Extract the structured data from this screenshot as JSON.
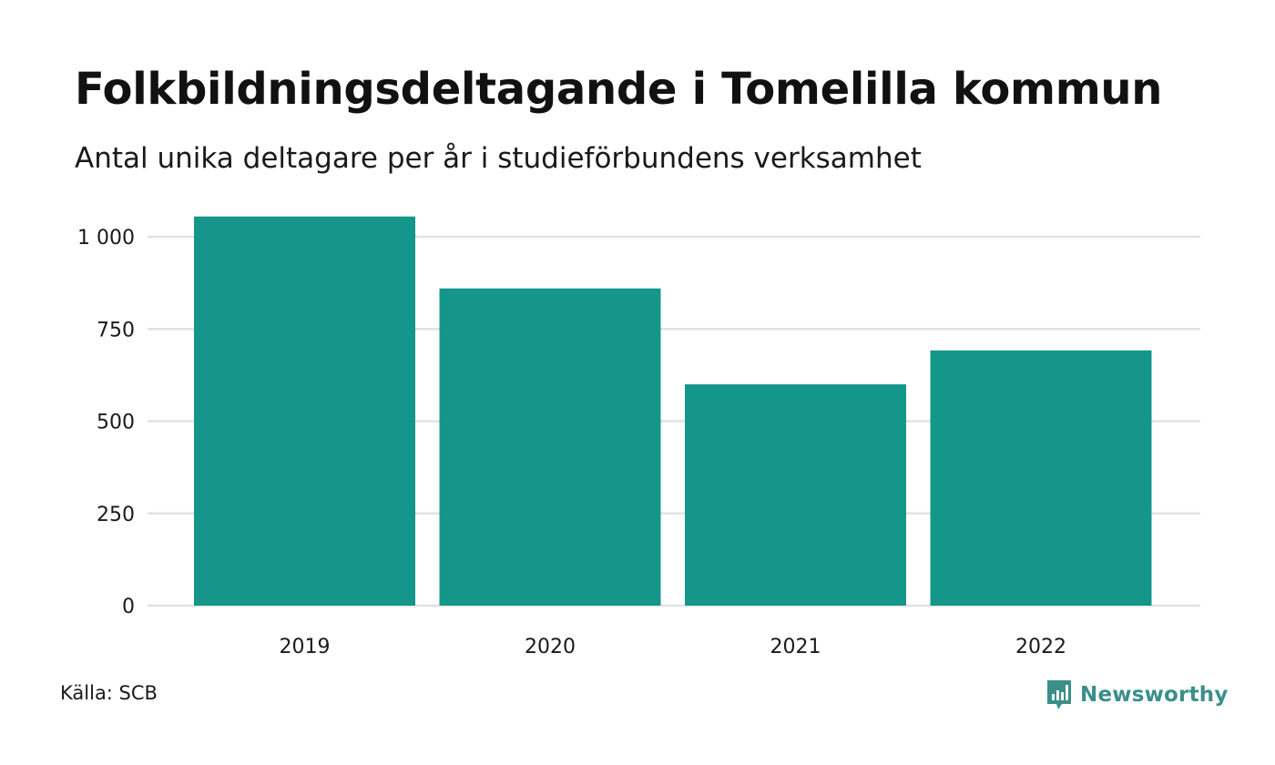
{
  "chart_data": {
    "type": "bar",
    "title": "Folkbildningsdeltagande i Tomelilla kommun",
    "subtitle": "Antal unika deltagare per år i studieförbundens verksamhet",
    "categories": [
      "2019",
      "2020",
      "2021",
      "2022"
    ],
    "values": [
      1055,
      860,
      600,
      692
    ],
    "ylim": [
      0,
      1000
    ],
    "yticks": [
      0,
      250,
      500,
      750,
      1000
    ],
    "ytick_labels": [
      "0",
      "250",
      "500",
      "750",
      "1 000"
    ],
    "grid": true,
    "bar_color": "#14968a",
    "grid_color": "#e2e2e2"
  },
  "footer": {
    "source": "Källa: SCB",
    "brand": "Newsworthy",
    "brand_color": "#3a8f8a",
    "brand_icon": "bar-chart-speech-icon"
  }
}
